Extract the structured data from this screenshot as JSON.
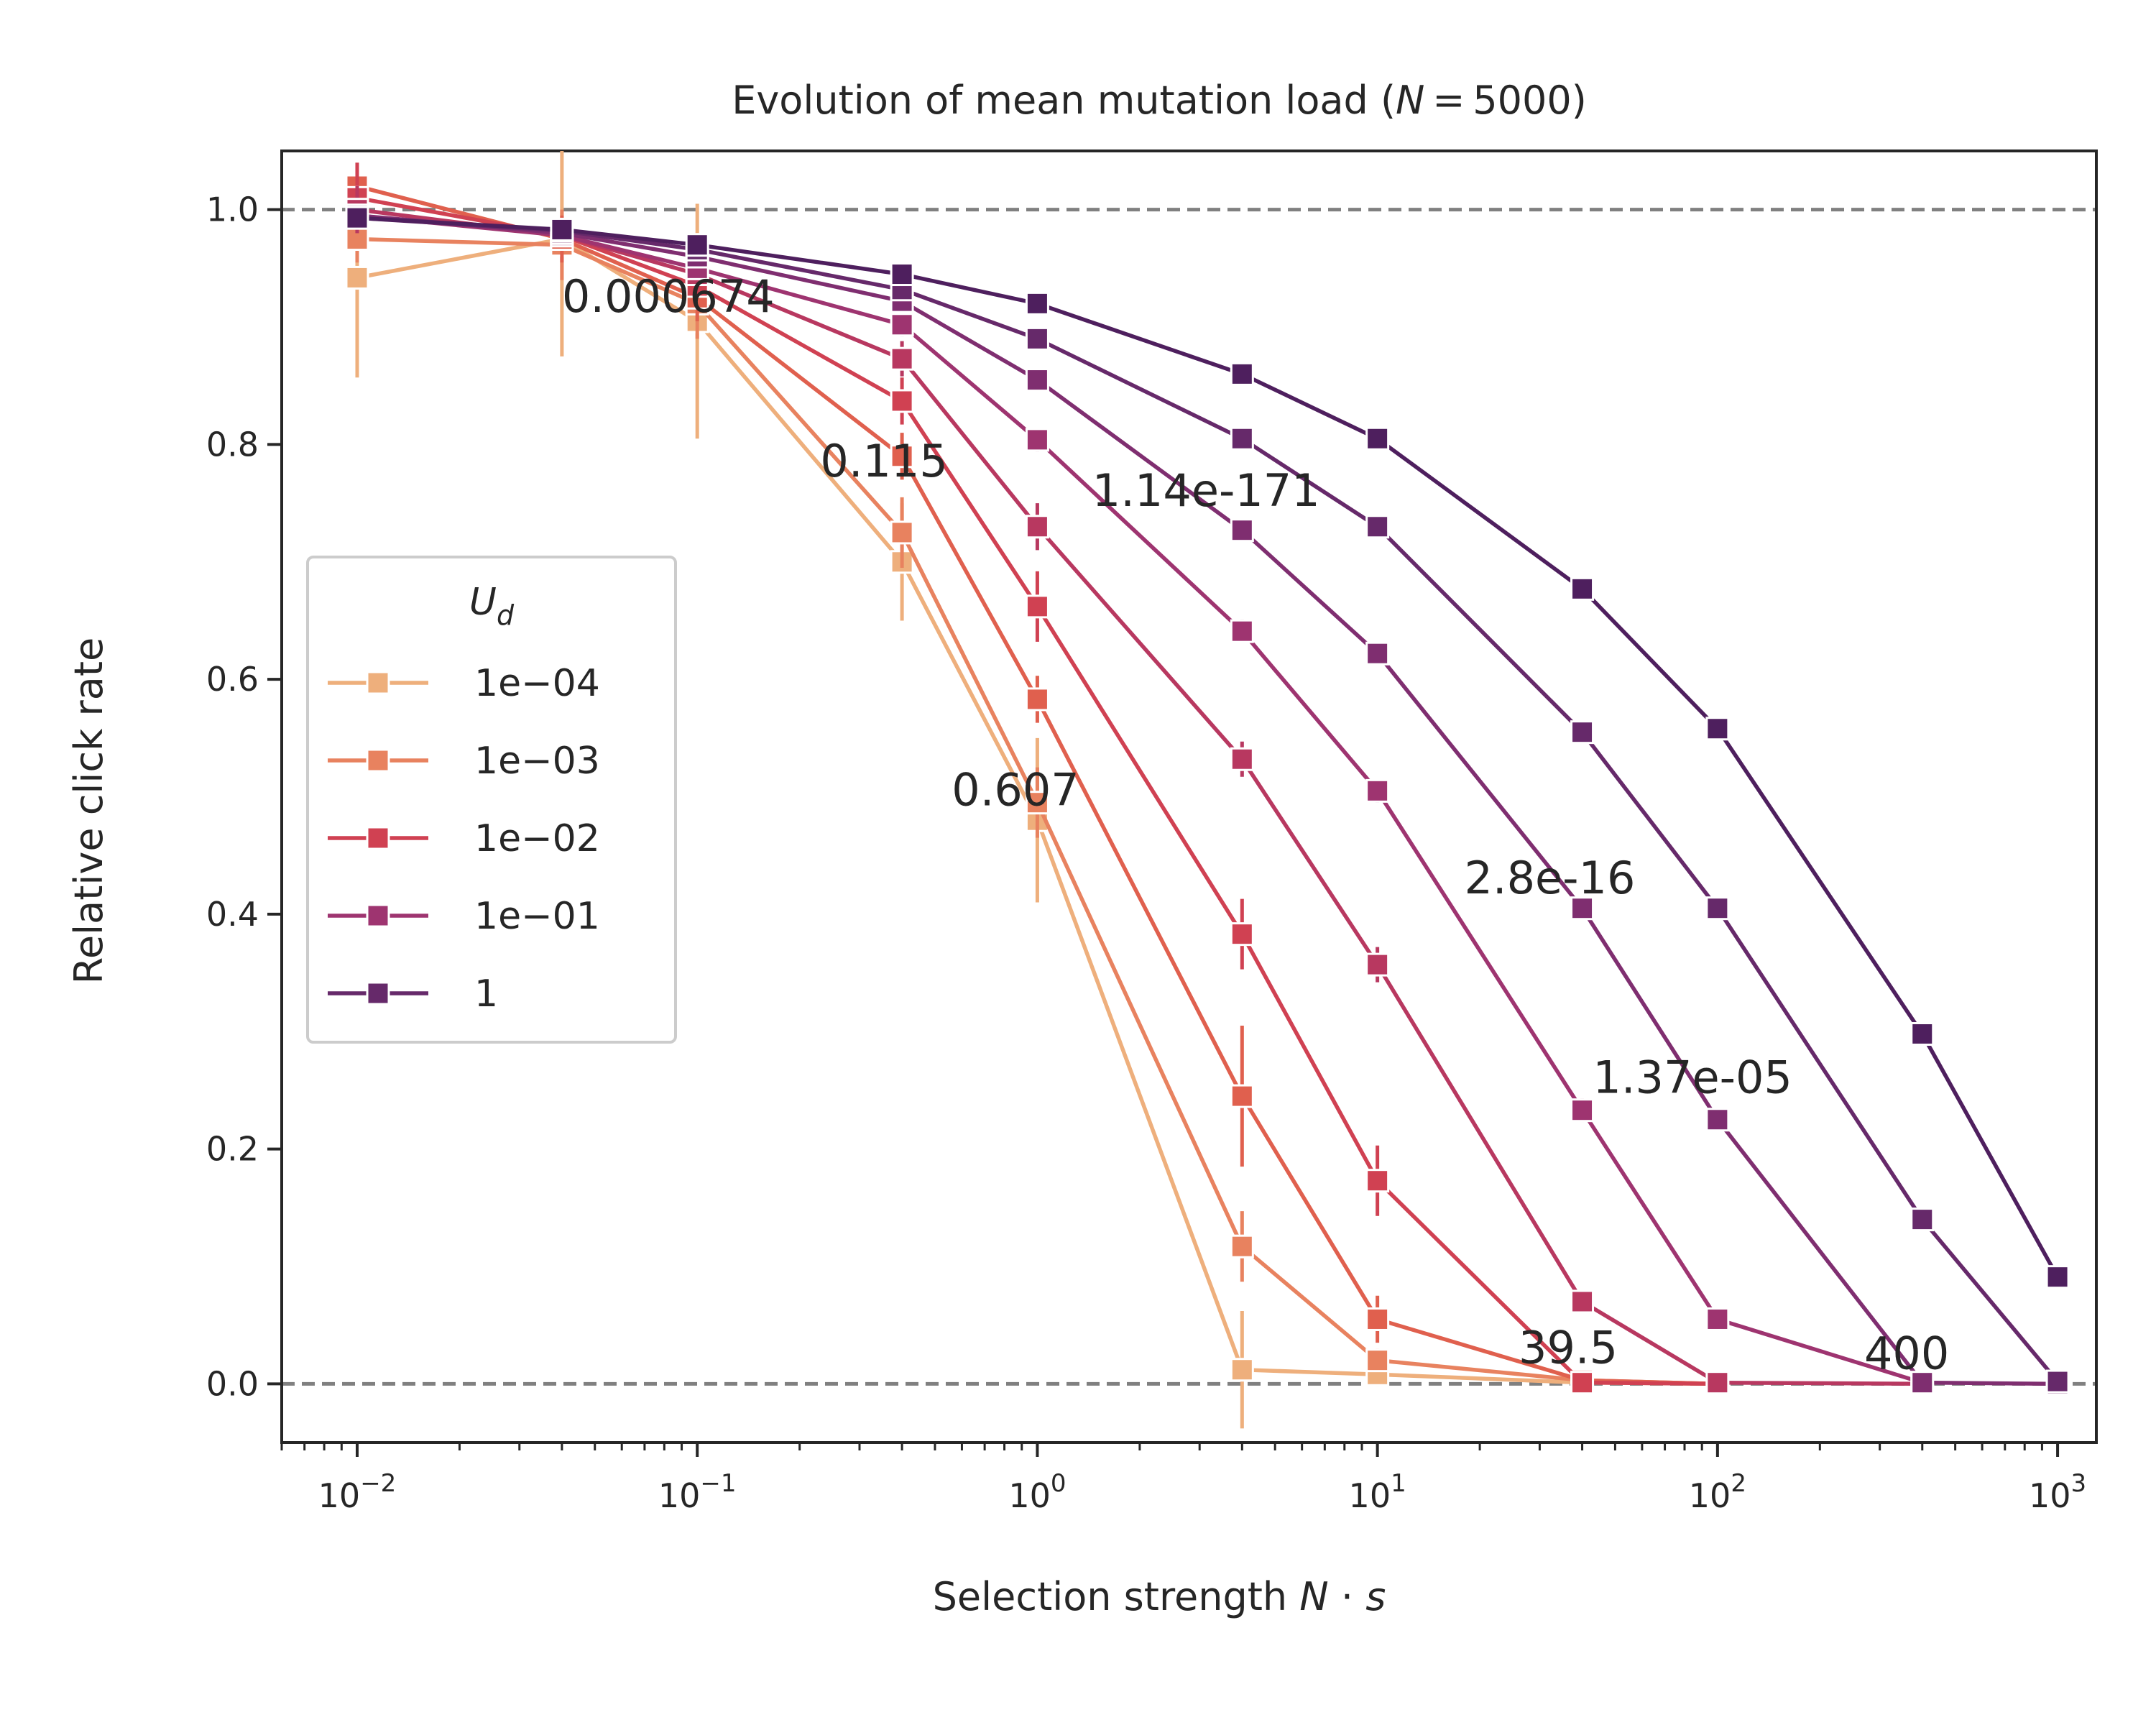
{
  "chart_data": {
    "type": "line",
    "title": "Evolution of mean mutation load (N = 5000)",
    "title_parts": {
      "prefix": "Evolution of mean mutation load (",
      "var": "N",
      "eq": " = 5000)"
    },
    "xlabel_parts": {
      "prefix": "Selection strength ",
      "var1": "N",
      "dot": " · ",
      "var2": "s"
    },
    "ylabel": "Relative click rate",
    "x_scale": "log",
    "xlim": [
      0.006,
      1300
    ],
    "ylim": [
      -0.05,
      1.05
    ],
    "x_ticks": [
      0.01,
      0.1,
      1,
      10,
      100,
      1000
    ],
    "x_tick_labels": [
      {
        "base": "10",
        "exp": "−2"
      },
      {
        "base": "10",
        "exp": "−1"
      },
      {
        "base": "10",
        "exp": "0"
      },
      {
        "base": "10",
        "exp": "1"
      },
      {
        "base": "10",
        "exp": "2"
      },
      {
        "base": "10",
        "exp": "3"
      }
    ],
    "y_ticks": [
      0.0,
      0.2,
      0.4,
      0.6,
      0.8,
      1.0
    ],
    "y_tick_labels": [
      "0.0",
      "0.2",
      "0.4",
      "0.6",
      "0.8",
      "1.0"
    ],
    "reference_lines": [
      0.0,
      1.0
    ],
    "legend": {
      "title": "U",
      "title_sub": "d",
      "placement": "center-left"
    },
    "series": [
      {
        "name": "1e−04",
        "color": "#eeaf7c",
        "x": [
          0.01,
          0.04,
          0.1,
          0.4,
          1,
          4,
          10,
          40,
          100
        ],
        "y": [
          0.942,
          0.975,
          0.905,
          0.7,
          0.48,
          0.012,
          0.008,
          0.001,
          0.0
        ],
        "err": [
          0.085,
          0.1,
          0.1,
          0.05,
          0.07,
          0.05,
          0.01,
          0.005,
          0.0
        ]
      },
      {
        "name": "1e−03",
        "color": "#e8825f",
        "x": [
          0.01,
          0.04,
          0.1,
          0.4,
          1,
          4,
          10,
          40,
          100
        ],
        "y": [
          0.975,
          0.97,
          0.92,
          0.725,
          0.495,
          0.117,
          0.02,
          0.003,
          0.0
        ],
        "err": [
          0.02,
          0.03,
          0.03,
          0.03,
          0.03,
          0.03,
          0.01,
          0.005,
          0.0
        ]
      },
      {
        "name": "1e−03 (2)",
        "color": "#e0604e",
        "x": [
          0.01,
          0.04,
          0.1,
          0.4,
          1,
          4,
          10,
          40,
          100
        ],
        "y": [
          1.02,
          0.975,
          0.925,
          0.79,
          0.583,
          0.245,
          0.055,
          0.003,
          0.0
        ],
        "err": [
          0.02,
          0.02,
          0.02,
          0.02,
          0.02,
          0.06,
          0.02,
          0.005,
          0.0
        ]
      },
      {
        "name": "1e−02",
        "color": "#d04152",
        "x": [
          0.01,
          0.04,
          0.1,
          0.4,
          1,
          4,
          10,
          40,
          100
        ],
        "y": [
          1.01,
          0.978,
          0.935,
          0.837,
          0.662,
          0.383,
          0.173,
          0.001,
          0.0
        ],
        "err": [
          0.03,
          0.01,
          0.01,
          0.02,
          0.03,
          0.03,
          0.03,
          0.005,
          0.0
        ]
      },
      {
        "name": "1e−02 (2)",
        "color": "#b83860",
        "x": [
          0.01,
          0.04,
          0.1,
          0.4,
          1,
          4,
          10,
          40,
          100,
          400
        ],
        "y": [
          1.0,
          0.978,
          0.945,
          0.873,
          0.73,
          0.532,
          0.357,
          0.07,
          0.001,
          0.0
        ],
        "err": [
          0.02,
          0.01,
          0.01,
          0.015,
          0.02,
          0.015,
          0.015,
          0.005,
          0.0,
          0.0
        ]
      },
      {
        "name": "1e−01",
        "color": "#9e3470",
        "x": [
          0.01,
          0.04,
          0.1,
          0.4,
          1,
          4,
          10,
          40,
          100,
          400
        ],
        "y": [
          0.995,
          0.978,
          0.95,
          0.902,
          0.804,
          0.641,
          0.505,
          0.233,
          0.055,
          0.001
        ],
        "err": [
          0.01,
          0.01,
          0.01,
          0.01,
          0.01,
          0.01,
          0.01,
          0.01,
          0.005,
          0.0
        ]
      },
      {
        "name": "1e−01 (2)",
        "color": "#7f2e70",
        "x": [
          0.01,
          0.04,
          0.1,
          0.4,
          1,
          4,
          10,
          40,
          100,
          400,
          1000
        ],
        "y": [
          0.995,
          0.98,
          0.96,
          0.922,
          0.855,
          0.727,
          0.622,
          0.405,
          0.225,
          0.001,
          0.0
        ],
        "err": [
          0.01,
          0.005,
          0.005,
          0.005,
          0.005,
          0.005,
          0.005,
          0.005,
          0.005,
          0.0,
          0.0
        ]
      },
      {
        "name": "1",
        "color": "#66296a",
        "x": [
          0.01,
          0.04,
          0.1,
          0.4,
          1,
          4,
          10,
          40,
          100,
          400,
          1000
        ],
        "y": [
          0.993,
          0.982,
          0.966,
          0.932,
          0.89,
          0.805,
          0.73,
          0.555,
          0.405,
          0.14,
          0.002
        ],
        "err": [
          0.005,
          0.005,
          0.005,
          0.005,
          0.005,
          0.005,
          0.005,
          0.005,
          0.005,
          0.005,
          0.0
        ]
      },
      {
        "name": "1 (2)",
        "color": "#4e1f5e",
        "x": [
          0.01,
          0.04,
          0.1,
          0.4,
          1,
          4,
          10,
          40,
          100,
          400,
          1000
        ],
        "y": [
          0.993,
          0.983,
          0.97,
          0.945,
          0.92,
          0.86,
          0.805,
          0.677,
          0.558,
          0.298,
          0.091
        ],
        "err": [
          0.005,
          0.005,
          0.005,
          0.005,
          0.005,
          0.005,
          0.005,
          0.005,
          0.005,
          0.005,
          0.0
        ]
      }
    ],
    "legend_entries": [
      {
        "label": "1e−04",
        "color": "#eeaf7c"
      },
      {
        "label": "1e−03",
        "color": "#e8825f"
      },
      {
        "label": "1e−02",
        "color": "#d04152"
      },
      {
        "label": "1e−01",
        "color": "#9e3470"
      },
      {
        "label": "1",
        "color": "#66296a"
      }
    ],
    "annotations": [
      {
        "text": "0.000674",
        "x": 0.04,
        "y": 0.925
      },
      {
        "text": "0.115",
        "x": 0.23,
        "y": 0.785
      },
      {
        "text": "1.14e-171",
        "x": 1.45,
        "y": 0.76
      },
      {
        "text": "0.607",
        "x": 0.56,
        "y": 0.505
      },
      {
        "text": "2.8e-16",
        "x": 18,
        "y": 0.43
      },
      {
        "text": "1.37e-05",
        "x": 43,
        "y": 0.26
      },
      {
        "text": "39.5",
        "x": 26,
        "y": 0.03
      },
      {
        "text": "400",
        "x": 270,
        "y": 0.025
      }
    ]
  }
}
